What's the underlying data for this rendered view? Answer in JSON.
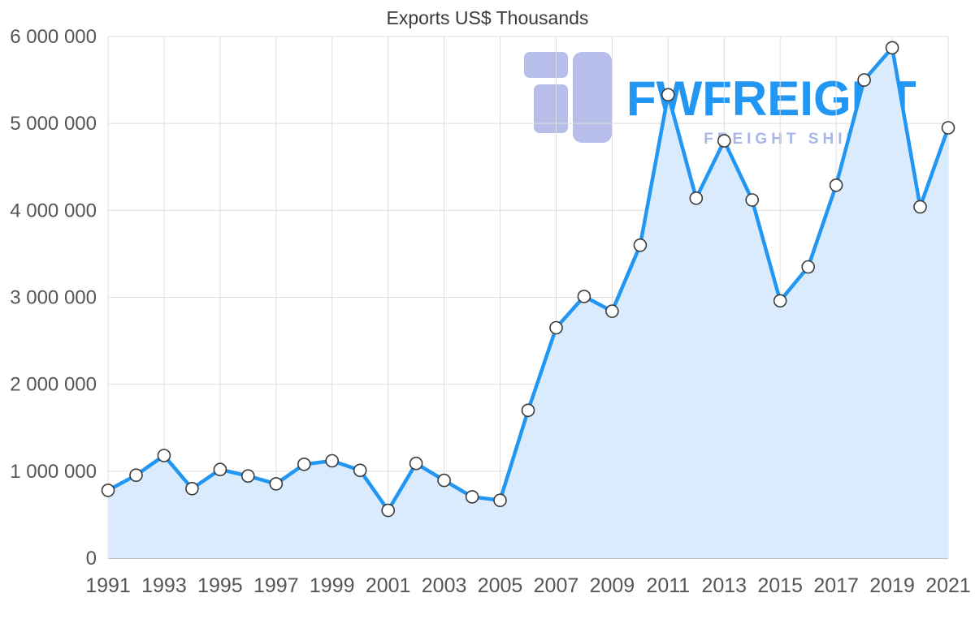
{
  "chart_data": {
    "type": "area",
    "title": "Exports US$ Thousands",
    "xlabel": "",
    "ylabel": "",
    "x": [
      1991,
      1992,
      1993,
      1994,
      1995,
      1996,
      1997,
      1998,
      1999,
      2000,
      2001,
      2002,
      2003,
      2004,
      2005,
      2006,
      2007,
      2008,
      2009,
      2010,
      2011,
      2012,
      2013,
      2014,
      2015,
      2016,
      2017,
      2018,
      2019,
      2020,
      2021
    ],
    "series": [
      {
        "name": "Exports US$ Thousands",
        "values": [
          780000,
          955000,
          1180000,
          800000,
          1020000,
          945000,
          855000,
          1080000,
          1120000,
          1010000,
          550000,
          1090000,
          895000,
          705000,
          665000,
          1700000,
          2650000,
          3010000,
          2840000,
          3600000,
          5330000,
          4140000,
          4800000,
          4120000,
          2960000,
          3350000,
          4290000,
          5500000,
          5870000,
          4040000,
          4950000
        ]
      }
    ],
    "ylim": [
      0,
      6000000
    ],
    "yticks": [
      {
        "value": 0,
        "label": "0"
      },
      {
        "value": 1000000,
        "label": "1 000 000"
      },
      {
        "value": 2000000,
        "label": "2 000 000"
      },
      {
        "value": 3000000,
        "label": "3 000 000"
      },
      {
        "value": 4000000,
        "label": "4 000 000"
      },
      {
        "value": 5000000,
        "label": "5 000 000"
      },
      {
        "value": 6000000,
        "label": "6 000 000"
      }
    ],
    "xticks": [
      1991,
      1993,
      1995,
      1997,
      1999,
      2001,
      2003,
      2005,
      2007,
      2009,
      2011,
      2013,
      2015,
      2017,
      2019,
      2021
    ],
    "grid": true,
    "legend_position": "none"
  },
  "watermark": {
    "brand": "FWFREIGHT",
    "tagline": "FREIGHT SHIPPING"
  },
  "colors": {
    "line": "#2196f3",
    "area": "#d9ebfc",
    "marker_fill": "#ffffff",
    "marker_stroke": "#3a3a3a",
    "grid": "#dddddd",
    "baseline": "#ababab",
    "axis_text": "#565656",
    "title_text": "#3a3a3a",
    "watermark_logo": "#aab3e6",
    "watermark_brand": "#2196f3",
    "watermark_tagline": "#a9b6ea"
  }
}
